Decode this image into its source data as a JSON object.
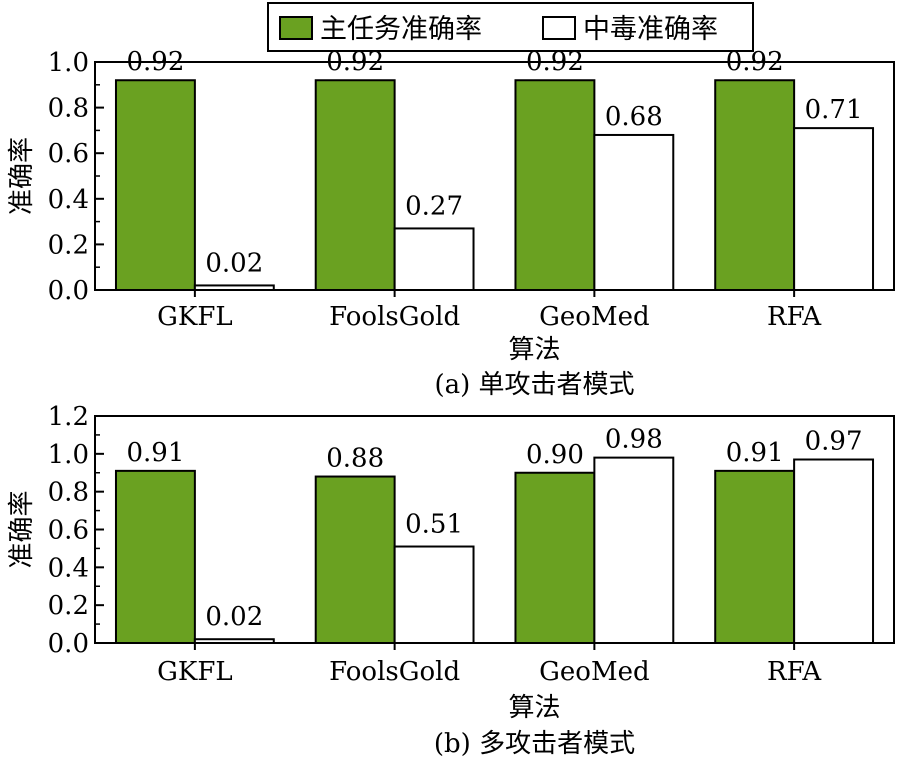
{
  "legend": {
    "items": [
      {
        "label": "主任务准确率",
        "color": "#6aa121"
      },
      {
        "label": "中毒准确率",
        "color": "#ffffff"
      }
    ]
  },
  "chart_data": [
    {
      "type": "bar",
      "categories": [
        "GKFL",
        "FoolsGold",
        "GeoMed",
        "RFA"
      ],
      "series": [
        {
          "name": "主任务准确率",
          "values": [
            0.92,
            0.92,
            0.92,
            0.92
          ],
          "labels": [
            "0.92",
            "0.92",
            "0.92",
            "0.92"
          ],
          "color": "#6aa121"
        },
        {
          "name": "中毒准确率",
          "values": [
            0.02,
            0.27,
            0.68,
            0.71
          ],
          "labels": [
            "0.02",
            "0.27",
            "0.68",
            "0.71"
          ],
          "color": "#ffffff"
        }
      ],
      "xlabel": "算法",
      "ylabel": "准确率",
      "ylim": [
        0,
        1.0
      ],
      "yticks": [
        "0.0",
        "0.2",
        "0.4",
        "0.6",
        "0.8",
        "1.0"
      ],
      "caption": "(a) 单攻击者模式",
      "grid": false
    },
    {
      "type": "bar",
      "categories": [
        "GKFL",
        "FoolsGold",
        "GeoMed",
        "RFA"
      ],
      "series": [
        {
          "name": "主任务准确率",
          "values": [
            0.91,
            0.88,
            0.9,
            0.91
          ],
          "labels": [
            "0.91",
            "0.88",
            "0.90",
            "0.91"
          ],
          "color": "#6aa121"
        },
        {
          "name": "中毒准确率",
          "values": [
            0.02,
            0.51,
            0.98,
            0.97
          ],
          "labels": [
            "0.02",
            "0.51",
            "0.98",
            "0.97"
          ],
          "color": "#ffffff"
        }
      ],
      "xlabel": "算法",
      "ylabel": "准确率",
      "ylim": [
        0,
        1.2
      ],
      "yticks": [
        "0.0",
        "0.2",
        "0.4",
        "0.6",
        "0.8",
        "1.0",
        "1.2"
      ],
      "caption": "(b) 多攻击者模式",
      "grid": false
    }
  ]
}
